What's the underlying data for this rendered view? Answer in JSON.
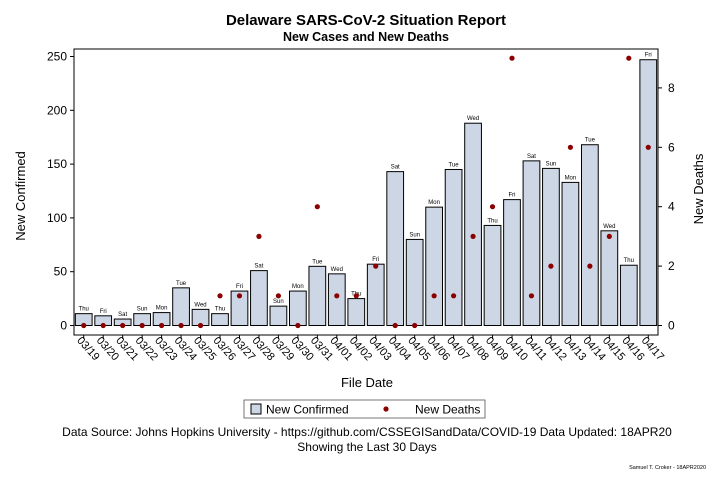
{
  "chart_data": {
    "type": "bar",
    "title": "Delaware SARS-CoV-2 Situation Report",
    "subtitle": "New Cases and New Deaths",
    "xlabel": "File Date",
    "ylabel": "New Confirmed",
    "y2label": "New Deaths",
    "ylim": [
      0,
      260
    ],
    "y2lim": [
      0,
      9.1
    ],
    "yticks": [
      "0",
      "50",
      "100",
      "150",
      "200",
      "250"
    ],
    "y2ticks": [
      "0",
      "2",
      "4",
      "6",
      "8"
    ],
    "categories": [
      "03/19",
      "03/20",
      "03/21",
      "03/22",
      "03/23",
      "03/24",
      "03/25",
      "03/26",
      "03/27",
      "03/28",
      "03/29",
      "03/30",
      "03/31",
      "04/01",
      "04/02",
      "04/03",
      "04/04",
      "04/05",
      "04/06",
      "04/07",
      "04/08",
      "04/09",
      "04/10",
      "04/11",
      "04/12",
      "04/13",
      "04/14",
      "04/15",
      "04/16",
      "04/17"
    ],
    "day_labels": [
      "Thu",
      "Fri",
      "Sat",
      "Sun",
      "Mon",
      "Tue",
      "Wed",
      "Thu",
      "Fri",
      "Sat",
      "Sun",
      "Mon",
      "Tue",
      "Wed",
      "Thu",
      "Fri",
      "Sat",
      "Sun",
      "Mon",
      "Tue",
      "Wed",
      "Thu",
      "Fri",
      "Sat",
      "Sun",
      "Mon",
      "Tue",
      "Wed",
      "Thu",
      "Fri"
    ],
    "series": [
      {
        "name": "New Confirmed",
        "type": "bar",
        "axis": "left",
        "color": "#cdd6e4",
        "values": [
          11,
          9,
          6,
          11,
          12,
          35,
          15,
          11,
          32,
          51,
          18,
          32,
          55,
          48,
          25,
          57,
          143,
          80,
          110,
          145,
          188,
          93,
          117,
          153,
          146,
          133,
          168,
          88,
          56,
          247
        ]
      },
      {
        "name": "New Deaths",
        "type": "scatter",
        "axis": "right",
        "color": "#8b0000",
        "values": [
          0,
          0,
          0,
          0,
          0,
          0,
          0,
          1,
          1,
          3,
          1,
          0,
          4,
          1,
          1,
          2,
          0,
          0,
          1,
          1,
          3,
          4,
          9,
          1,
          2,
          6,
          2,
          3,
          9,
          6
        ]
      }
    ],
    "legend": {
      "position": "bottom",
      "items": [
        "New Confirmed",
        "New Deaths"
      ]
    },
    "grid": false
  },
  "footer": {
    "source": "Data Source: Johns Hopkins University - https://github.com/CSSEGISandData/COVID-19 Data Updated: 18APR20",
    "note": "Showing the Last 30 Days",
    "credit": "Samuel T. Croker - 18APR2020"
  }
}
